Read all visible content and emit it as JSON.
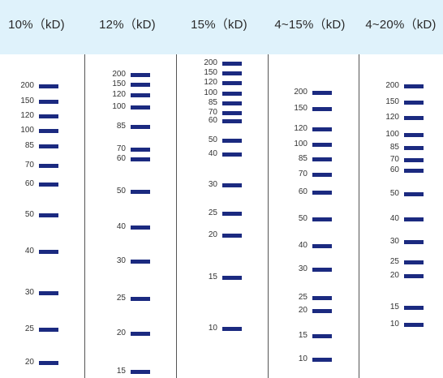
{
  "colors": {
    "header_bg": "#dff2fb",
    "band": "#1b2a80",
    "divider": "#555555"
  },
  "columns": [
    {
      "title": "10%（kD)",
      "markers": [
        "200",
        "150",
        "120",
        "100",
        "85",
        "70",
        "60",
        "50",
        "40",
        "30",
        "25",
        "20"
      ]
    },
    {
      "title": "12%（kD)",
      "markers": [
        "200",
        "150",
        "120",
        "100",
        "85",
        "70",
        "60",
        "50",
        "40",
        "30",
        "25",
        "20",
        "15"
      ]
    },
    {
      "title": "15%（kD)",
      "markers": [
        "200",
        "150",
        "120",
        "100",
        "85",
        "70",
        "60",
        "50",
        "40",
        "30",
        "25",
        "20",
        "15",
        "10"
      ]
    },
    {
      "title": "4~15%（kD)",
      "markers": [
        "200",
        "150",
        "120",
        "100",
        "85",
        "70",
        "60",
        "50",
        "40",
        "30",
        "25",
        "20",
        "15",
        "10"
      ]
    },
    {
      "title": "4~20%（kD)",
      "markers": [
        "200",
        "150",
        "120",
        "100",
        "85",
        "70",
        "60",
        "50",
        "40",
        "30",
        "25",
        "20",
        "15",
        "10"
      ]
    }
  ]
}
